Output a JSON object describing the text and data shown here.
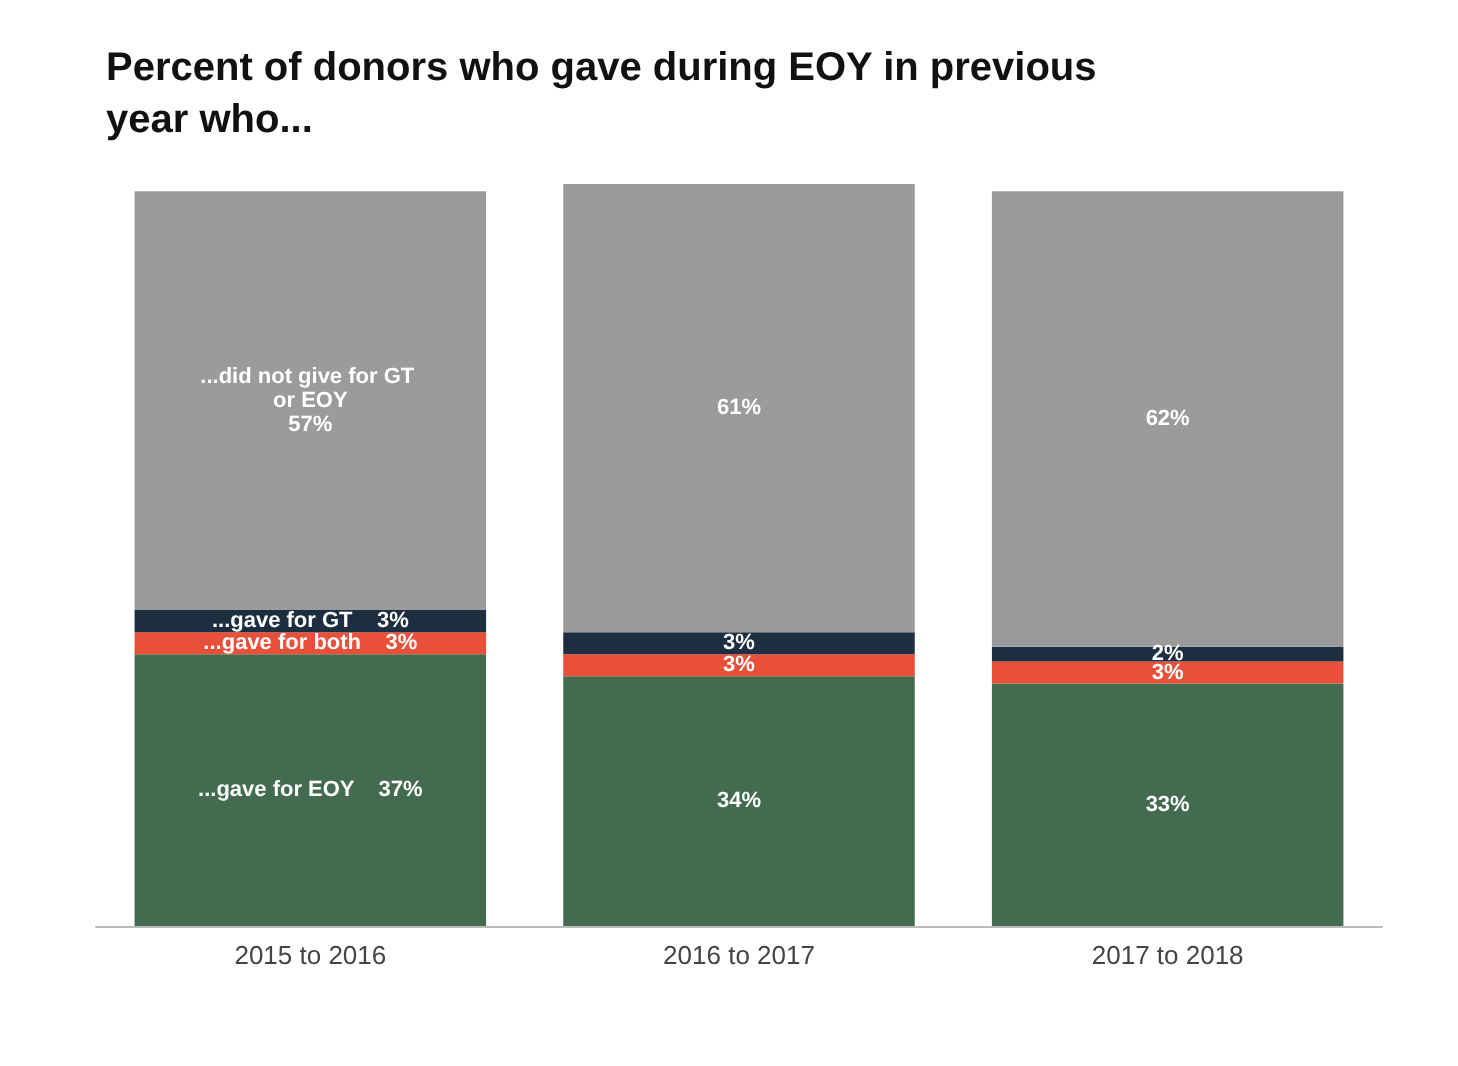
{
  "chart_data": {
    "type": "bar",
    "title": "Percent of donors who gave during EOY in previous year who...",
    "categories": [
      "2015 to 2016",
      "2016 to 2017",
      "2017 to 2018"
    ],
    "stacked": true,
    "legend": false,
    "series": [
      {
        "name": "...gave for EOY",
        "color": "#436b4f",
        "values": [
          37,
          34,
          33
        ],
        "value_labels": [
          "37%",
          "34%",
          "33%"
        ]
      },
      {
        "name": "...gave for both",
        "color": "#e8503a",
        "values": [
          3,
          3,
          3
        ],
        "value_labels": [
          "3%",
          "3%",
          "3%"
        ]
      },
      {
        "name": "...gave for GT",
        "color": "#1c2e40",
        "values": [
          3,
          3,
          2
        ],
        "value_labels": [
          "3%",
          "3%",
          "2%"
        ]
      },
      {
        "name": "...did not give for GT or EOY",
        "color": "#9b9b9b",
        "values": [
          57,
          61,
          62
        ],
        "value_labels": [
          "57%",
          "61%",
          "62%"
        ]
      }
    ]
  }
}
